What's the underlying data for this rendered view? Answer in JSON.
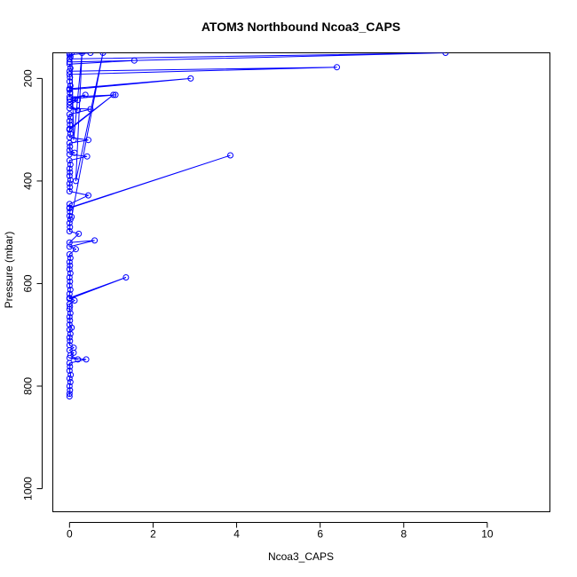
{
  "chart_data": {
    "type": "line",
    "title": "ATOM3 Northbound Ncoa3_CAPS",
    "xlabel": "Ncoa3_CAPS",
    "ylabel": "Pressure (mbar)",
    "xlim": [
      -0.4,
      11.5
    ],
    "ylim": [
      1045,
      150
    ],
    "y_reversed": true,
    "x_ticks": [
      0,
      2,
      4,
      6,
      8,
      10
    ],
    "x_tick_labels": [
      "0",
      "2",
      "4",
      "6",
      "8",
      "10"
    ],
    "y_ticks": [
      200,
      400,
      600,
      800,
      1000
    ],
    "y_tick_labels": [
      "200",
      "400",
      "600",
      "800",
      "1000"
    ],
    "grid": false,
    "color": "#0000ff",
    "series": [
      {
        "points": [
          [
            0.0,
            820
          ],
          [
            0.0,
            815
          ],
          [
            0.01,
            808
          ],
          [
            0.0,
            800
          ],
          [
            0.02,
            792
          ],
          [
            0.0,
            785
          ],
          [
            0.03,
            778
          ],
          [
            0.0,
            770
          ],
          [
            0.01,
            762
          ],
          [
            0.0,
            755
          ],
          [
            0.4,
            748
          ],
          [
            0.0,
            745
          ],
          [
            0.2,
            748
          ],
          [
            0.02,
            740
          ],
          [
            0.1,
            735
          ],
          [
            0.0,
            730
          ],
          [
            0.1,
            725
          ],
          [
            0.0,
            720
          ],
          [
            0.01,
            712
          ],
          [
            0.0,
            705
          ],
          [
            0.02,
            698
          ],
          [
            0.0,
            690
          ],
          [
            0.05,
            686
          ],
          [
            0.0,
            680
          ],
          [
            0.01,
            672
          ],
          [
            0.0,
            665
          ],
          [
            0.02,
            658
          ],
          [
            0.0,
            650
          ],
          [
            0.01,
            645
          ],
          [
            0.0,
            640
          ],
          [
            0.12,
            633
          ],
          [
            0.0,
            628
          ],
          [
            1.35,
            588
          ],
          [
            0.0,
            630
          ],
          [
            0.0,
            620
          ],
          [
            0.02,
            612
          ],
          [
            0.0,
            604
          ],
          [
            0.01,
            596
          ],
          [
            0.0,
            588
          ],
          [
            0.02,
            580
          ],
          [
            0.0,
            572
          ],
          [
            0.01,
            565
          ],
          [
            0.0,
            558
          ],
          [
            0.02,
            550
          ],
          [
            0.0,
            543
          ],
          [
            0.15,
            533
          ],
          [
            0.0,
            528
          ],
          [
            0.6,
            516
          ],
          [
            0.0,
            520
          ],
          [
            0.22,
            503
          ],
          [
            0.0,
            498
          ],
          [
            0.01,
            490
          ],
          [
            0.0,
            482
          ],
          [
            0.02,
            475
          ],
          [
            0.0,
            468
          ],
          [
            0.01,
            460
          ],
          [
            0.0,
            453
          ],
          [
            3.85,
            350
          ],
          [
            0.0,
            452
          ],
          [
            0.0,
            445
          ],
          [
            0.45,
            428
          ],
          [
            0.0,
            420
          ],
          [
            0.01,
            412
          ],
          [
            0.0,
            405
          ],
          [
            0.02,
            398
          ],
          [
            0.0,
            390
          ],
          [
            0.01,
            383
          ],
          [
            0.0,
            376
          ],
          [
            0.02,
            368
          ],
          [
            0.0,
            360
          ],
          [
            0.42,
            352
          ],
          [
            0.0,
            348
          ],
          [
            0.12,
            345
          ],
          [
            0.0,
            340
          ],
          [
            0.01,
            333
          ],
          [
            0.0,
            326
          ],
          [
            0.45,
            320
          ],
          [
            0.0,
            315
          ],
          [
            0.02,
            308
          ],
          [
            0.0,
            300
          ],
          [
            1.05,
            232
          ],
          [
            0.0,
            298
          ],
          [
            0.01,
            290
          ],
          [
            0.0,
            283
          ],
          [
            0.02,
            276
          ],
          [
            0.0,
            270
          ],
          [
            0.5,
            260
          ],
          [
            0.0,
            258
          ],
          [
            0.2,
            262
          ],
          [
            0.0,
            252
          ],
          [
            0.2,
            242
          ],
          [
            0.0,
            246
          ],
          [
            0.38,
            232
          ],
          [
            0.0,
            240
          ],
          [
            1.1,
            232
          ],
          [
            0.0,
            236
          ],
          [
            0.01,
            228
          ],
          [
            0.0,
            220
          ],
          [
            2.9,
            200
          ],
          [
            0.0,
            222
          ],
          [
            0.02,
            214
          ],
          [
            0.0,
            206
          ],
          [
            0.01,
            198
          ],
          [
            0.0,
            192
          ],
          [
            6.4,
            178
          ],
          [
            0.0,
            186
          ],
          [
            0.02,
            180
          ],
          [
            0.0,
            172
          ],
          [
            1.55,
            165
          ],
          [
            0.0,
            168
          ],
          [
            9.0,
            150
          ],
          [
            0.0,
            162
          ],
          [
            0.02,
            158
          ],
          [
            0.0,
            154
          ],
          [
            0.5,
            150
          ],
          [
            0.0,
            150
          ]
        ]
      },
      {
        "points": [
          [
            0.05,
            150
          ],
          [
            0.1,
            320
          ],
          [
            0.3,
            150
          ],
          [
            0.15,
            400
          ],
          [
            0.8,
            150
          ],
          [
            0.05,
            470
          ]
        ]
      }
    ]
  }
}
